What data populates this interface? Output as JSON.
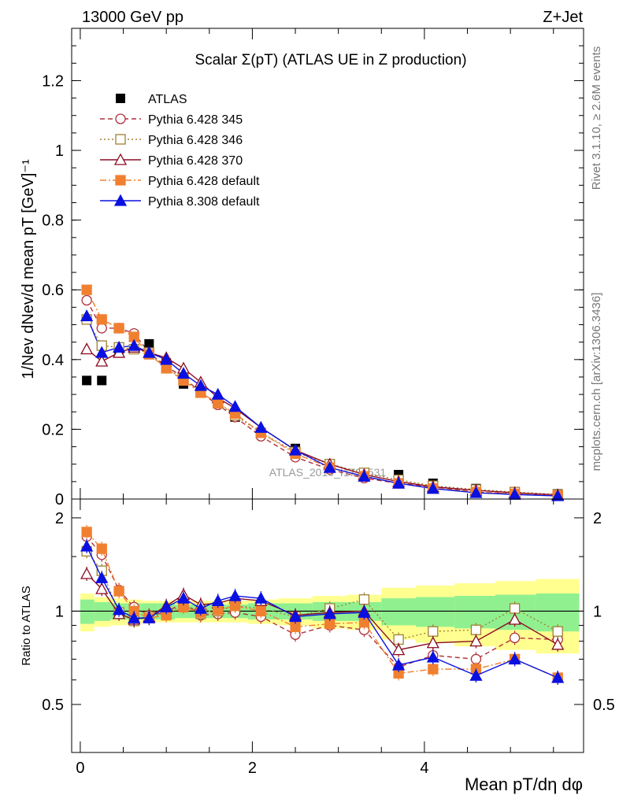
{
  "header": {
    "left": "13000 GeV pp",
    "right": "Z+Jet"
  },
  "side_labels": {
    "rivet": "Rivet 3.1.10, ≥ 2.6M events",
    "mcplots": "mcplots.cern.ch [arXiv:1306.3436]"
  },
  "watermark": "ATLAS_2019_I1736531",
  "chart_data": [
    {
      "type": "line",
      "title": "Scalar Σ(pT) (ATLAS UE in Z production)",
      "ylabel": "1/Nev dNev/d mean pT [GeV]⁻¹",
      "xlim": [
        -0.1,
        5.85
      ],
      "ylim": [
        0,
        1.35
      ],
      "yticks": [
        "0",
        "0.2",
        "0.4",
        "0.6",
        "0.8",
        "1",
        "1.2"
      ],
      "legend_position": "top-left",
      "x": [
        0.075,
        0.25,
        0.45,
        0.625,
        0.8,
        1.0,
        1.2,
        1.4,
        1.6,
        1.8,
        2.1,
        2.5,
        2.9,
        3.3,
        3.7,
        4.1,
        4.6,
        5.05,
        5.55
      ],
      "series": [
        {
          "name": "ATLAS",
          "color": "#000000",
          "marker": "filled-square",
          "values": [
            0.34,
            0.34,
            0.43,
            0.465,
            0.445,
            0.39,
            0.33,
            0.31,
            0.275,
            0.235,
            0.19,
            0.145,
            0.095,
            0.07,
            0.07,
            0.045,
            0.03,
            0.02,
            0.015
          ]
        },
        {
          "name": "Pythia 6.428 345",
          "color": "#b0303a",
          "marker": "open-circle",
          "dash": "6,4",
          "values": [
            0.57,
            0.49,
            0.49,
            0.475,
            0.42,
            0.38,
            0.35,
            0.305,
            0.27,
            0.235,
            0.18,
            0.12,
            0.085,
            0.06,
            0.045,
            0.035,
            0.02,
            0.015,
            0.01
          ]
        },
        {
          "name": "Pythia 6.428 346",
          "color": "#a08030",
          "marker": "open-square",
          "dash": "2,3",
          "values": [
            0.515,
            0.44,
            0.435,
            0.43,
            0.42,
            0.375,
            0.345,
            0.305,
            0.275,
            0.24,
            0.19,
            0.135,
            0.1,
            0.075,
            0.055,
            0.038,
            0.027,
            0.02,
            0.013
          ]
        },
        {
          "name": "Pythia 6.428 370",
          "color": "#8b0a20",
          "marker": "open-triangle",
          "dash": "",
          "values": [
            0.43,
            0.395,
            0.42,
            0.435,
            0.42,
            0.405,
            0.375,
            0.335,
            0.29,
            0.26,
            0.205,
            0.14,
            0.1,
            0.07,
            0.05,
            0.035,
            0.025,
            0.018,
            0.012
          ]
        },
        {
          "name": "Pythia 6.428 default",
          "color": "#f08030",
          "marker": "filled-square",
          "dash": "8,3,2,3",
          "values": [
            0.6,
            0.515,
            0.49,
            0.465,
            0.415,
            0.375,
            0.34,
            0.305,
            0.275,
            0.245,
            0.19,
            0.13,
            0.09,
            0.065,
            0.045,
            0.03,
            0.02,
            0.015,
            0.01
          ]
        },
        {
          "name": "Pythia 8.308 default",
          "color": "#0a10e0",
          "marker": "filled-triangle",
          "dash": "",
          "values": [
            0.525,
            0.42,
            0.435,
            0.44,
            0.42,
            0.4,
            0.36,
            0.325,
            0.3,
            0.265,
            0.205,
            0.14,
            0.09,
            0.065,
            0.045,
            0.03,
            0.018,
            0.013,
            0.009
          ]
        }
      ]
    },
    {
      "type": "line",
      "ylabel": "Ratio to ATLAS",
      "xlabel": "Mean pT/dη dφ",
      "xlim": [
        -0.1,
        5.85
      ],
      "ylim": [
        0.35,
        2.3
      ],
      "yticks": [
        "0.5",
        "1",
        "2"
      ],
      "xticks": [
        "0",
        "2",
        "4"
      ],
      "x": [
        0.075,
        0.25,
        0.45,
        0.625,
        0.8,
        1.0,
        1.2,
        1.4,
        1.6,
        1.8,
        2.1,
        2.5,
        2.9,
        3.3,
        3.7,
        4.1,
        4.6,
        5.05,
        5.55
      ],
      "uncertainty_bands": {
        "inner": {
          "color": "#90f090",
          "values": [
            0.09,
            0.07,
            0.06,
            0.06,
            0.06,
            0.06,
            0.05,
            0.05,
            0.05,
            0.05,
            0.06,
            0.06,
            0.07,
            0.07,
            0.1,
            0.11,
            0.12,
            0.13,
            0.14
          ]
        },
        "outer": {
          "color": "#ffff90",
          "values": [
            0.14,
            0.11,
            0.1,
            0.09,
            0.08,
            0.08,
            0.08,
            0.08,
            0.08,
            0.08,
            0.09,
            0.1,
            0.12,
            0.13,
            0.19,
            0.21,
            0.23,
            0.25,
            0.27
          ]
        }
      },
      "series": [
        {
          "name": "Pythia 6.428 345",
          "values": [
            1.74,
            1.52,
            1.17,
            1.03,
            0.97,
            0.99,
            1.07,
            0.97,
            0.98,
            0.99,
            0.96,
            0.84,
            0.9,
            0.87,
            0.66,
            0.72,
            0.7,
            0.82,
            0.81
          ]
        },
        {
          "name": "Pythia 6.428 346",
          "values": [
            1.56,
            1.35,
            0.99,
            0.93,
            0.96,
            0.98,
            1.05,
            0.98,
            1.0,
            1.04,
            1.02,
            0.96,
            1.02,
            1.09,
            0.81,
            0.86,
            0.87,
            1.02,
            0.86
          ]
        },
        {
          "name": "Pythia 6.428 370",
          "values": [
            1.32,
            1.18,
            0.98,
            0.94,
            0.96,
            1.04,
            1.13,
            1.05,
            1.06,
            1.1,
            1.08,
            0.97,
            0.99,
            1.0,
            0.75,
            0.79,
            0.8,
            0.94,
            0.78
          ]
        },
        {
          "name": "Pythia 6.428 default",
          "values": [
            1.8,
            1.59,
            1.16,
            1.0,
            0.95,
            0.97,
            1.03,
            0.99,
            1.01,
            1.04,
            1.0,
            0.89,
            0.91,
            0.92,
            0.63,
            0.65,
            0.65,
            0.7,
            0.61
          ]
        },
        {
          "name": "Pythia 8.308 default",
          "values": [
            1.62,
            1.28,
            1.01,
            0.95,
            0.95,
            1.03,
            1.1,
            1.02,
            1.08,
            1.12,
            1.1,
            0.96,
            0.98,
            0.99,
            0.67,
            0.71,
            0.62,
            0.7,
            0.61
          ]
        }
      ]
    }
  ]
}
